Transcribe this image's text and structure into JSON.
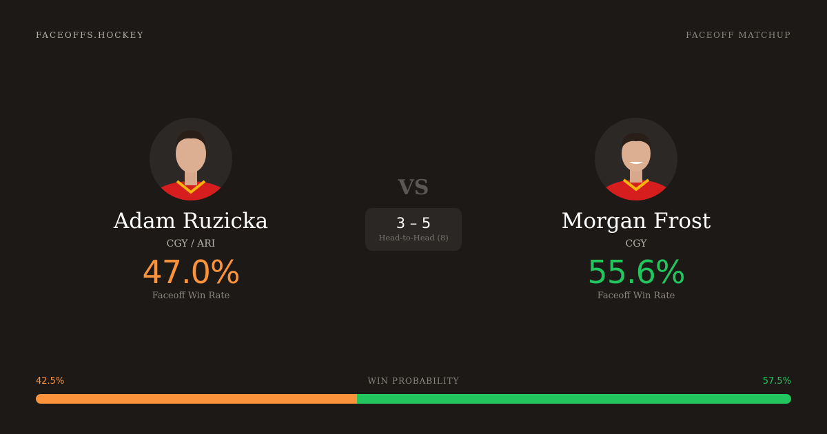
{
  "header": {
    "brand": "FACEOFFS.HOCKEY",
    "page_kind": "FACEOFF MATCHUP"
  },
  "colors": {
    "left": "#fb923c",
    "right": "#22c55e"
  },
  "player_left": {
    "name": "Adam Ruzicka",
    "team": "CGY / ARI",
    "win_rate": "47.0%",
    "win_rate_label": "Faceoff Win Rate"
  },
  "player_right": {
    "name": "Morgan Frost",
    "team": "CGY",
    "win_rate": "55.6%",
    "win_rate_label": "Faceoff Win Rate"
  },
  "vs": "VS",
  "head_to_head": {
    "score": "3 – 5",
    "label": "Head-to-Head (8)"
  },
  "win_probability": {
    "title": "WIN PROBABILITY",
    "left": "42.5%",
    "right": "57.5%",
    "left_fraction": 0.425
  }
}
